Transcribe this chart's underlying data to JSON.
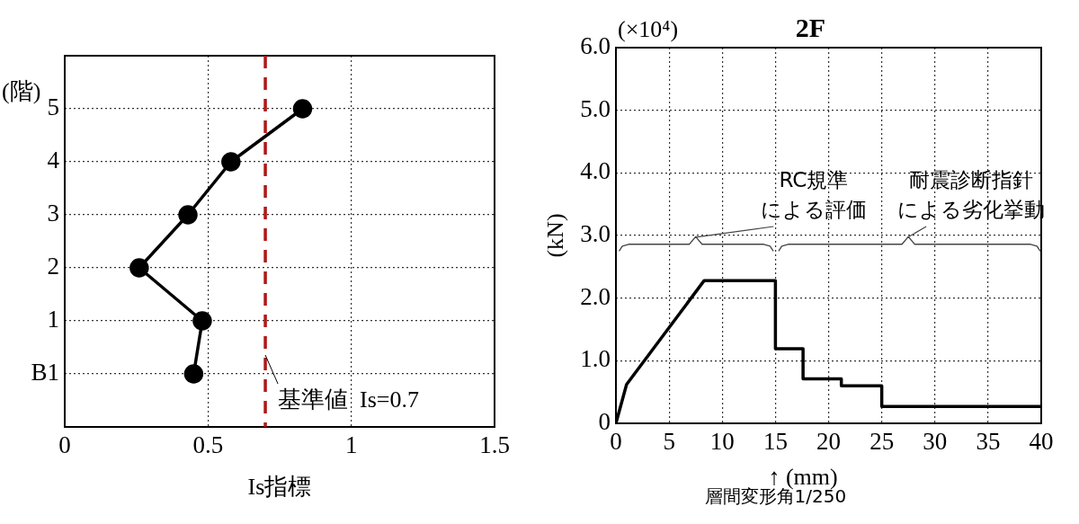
{
  "chart_data": [
    {
      "type": "line",
      "xlabel": "Is指標",
      "ylabel": "(階)",
      "x": [
        0.45,
        0.48,
        0.26,
        0.43,
        0.58,
        0.83
      ],
      "values": [
        0,
        1,
        2,
        3,
        4,
        5
      ],
      "color": "#000000",
      "marker": "circle",
      "line_style": "solid",
      "xlim": [
        0,
        1.5
      ],
      "xticks": [
        0,
        0.5,
        1,
        1.5
      ],
      "ylim": [
        -1,
        6
      ],
      "yticks": [
        {
          "value": 0,
          "label": "B1"
        },
        1,
        2,
        3,
        4,
        5
      ],
      "grid": true,
      "legend": false,
      "ref_lines": [
        {
          "axis": "x",
          "value": 0.7,
          "label": "基準値  Is=0.7",
          "color": "#b01818",
          "line_style": "dashed"
        }
      ]
    },
    {
      "type": "line",
      "title": "2F",
      "xlabel": "↑ (mm)",
      "ylabel": "(kN)",
      "series": [
        {
          "color": "#000000",
          "x": [
            0,
            1.0,
            8.3,
            15.0,
            15.0,
            17.6,
            17.6,
            21.2,
            21.2,
            25.0,
            25.0,
            40
          ],
          "values": [
            0,
            0.62,
            2.28,
            2.28,
            1.19,
            1.19,
            0.71,
            0.71,
            0.6,
            0.6,
            0.27,
            0.27
          ]
        },
        {
          "type": "line",
          "color": "#444444",
          "x": [
            0.3,
            0.6,
            1.2,
            6.9,
            7.5,
            8.1,
            13.9,
            14.5,
            14.8
          ],
          "values": [
            2.75,
            2.83,
            2.86,
            2.86,
            2.98,
            2.86,
            2.86,
            2.83,
            2.75
          ]
        },
        {
          "type": "line",
          "color": "#444444",
          "x": [
            15.3,
            15.6,
            16.2,
            26.9,
            27.5,
            28.1,
            39.0,
            39.6,
            39.9
          ],
          "values": [
            2.75,
            2.83,
            2.86,
            2.86,
            2.98,
            2.86,
            2.86,
            2.83,
            2.75
          ]
        }
      ],
      "marker": "none",
      "line_style": "solid",
      "xlim": [
        0,
        40
      ],
      "xticks": [
        0,
        5,
        10,
        15,
        20,
        25,
        30,
        35,
        40
      ],
      "ylim": [
        0,
        6
      ],
      "yticks": [
        0,
        {
          "value": 1,
          "label": "1.0"
        },
        {
          "value": 2,
          "label": "2.0"
        },
        {
          "value": 3,
          "label": "3.0"
        },
        {
          "value": 4,
          "label": "4.0"
        },
        {
          "value": 5,
          "label": "5.0"
        },
        {
          "value": 6,
          "label": "6.0"
        }
      ],
      "grid": true,
      "legend": false,
      "annotations": [
        "(×10⁴)",
        "層間変形角1/250",
        "RC規準",
        {
          "text": "による評価",
          "x": 7.5,
          "y": 2.98
        },
        "耐震診断指針",
        {
          "text": "による劣化挙動",
          "x": 27.5,
          "y": 2.98
        }
      ]
    }
  ]
}
